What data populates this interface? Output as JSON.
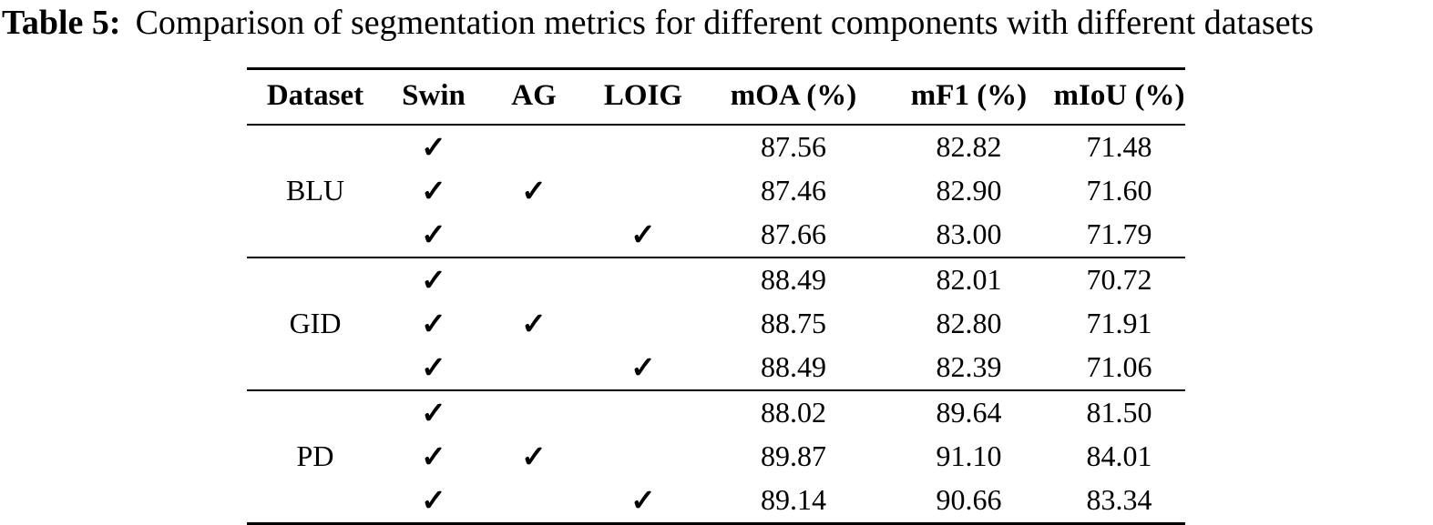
{
  "caption": {
    "label": "Table 5:",
    "text": "Comparison of segmentation metrics for different components with different datasets"
  },
  "table": {
    "columns": [
      "Dataset",
      "Swin",
      "AG",
      "LOIG",
      "mOA (%)",
      "mF1 (%)",
      "mIoU (%)"
    ],
    "checkmark_glyph": "✓",
    "groups": [
      {
        "dataset": "BLU",
        "rows": [
          {
            "swin": "✓",
            "ag": "",
            "loig": "",
            "moa": "87.56",
            "mf1": "82.82",
            "miou": "71.48"
          },
          {
            "swin": "✓",
            "ag": "✓",
            "loig": "",
            "moa": "87.46",
            "mf1": "82.90",
            "miou": "71.60"
          },
          {
            "swin": "✓",
            "ag": "",
            "loig": "✓",
            "moa": "87.66",
            "mf1": "83.00",
            "miou": "71.79"
          }
        ]
      },
      {
        "dataset": "GID",
        "rows": [
          {
            "swin": "✓",
            "ag": "",
            "loig": "",
            "moa": "88.49",
            "mf1": "82.01",
            "miou": "70.72"
          },
          {
            "swin": "✓",
            "ag": "✓",
            "loig": "",
            "moa": "88.75",
            "mf1": "82.80",
            "miou": "71.91"
          },
          {
            "swin": "✓",
            "ag": "",
            "loig": "✓",
            "moa": "88.49",
            "mf1": "82.39",
            "miou": "71.06"
          }
        ]
      },
      {
        "dataset": "PD",
        "rows": [
          {
            "swin": "✓",
            "ag": "",
            "loig": "",
            "moa": "88.02",
            "mf1": "89.64",
            "miou": "81.50"
          },
          {
            "swin": "✓",
            "ag": "✓",
            "loig": "",
            "moa": "89.87",
            "mf1": "91.10",
            "miou": "84.01"
          },
          {
            "swin": "✓",
            "ag": "",
            "loig": "✓",
            "moa": "89.14",
            "mf1": "90.66",
            "miou": "83.34"
          }
        ]
      }
    ]
  }
}
